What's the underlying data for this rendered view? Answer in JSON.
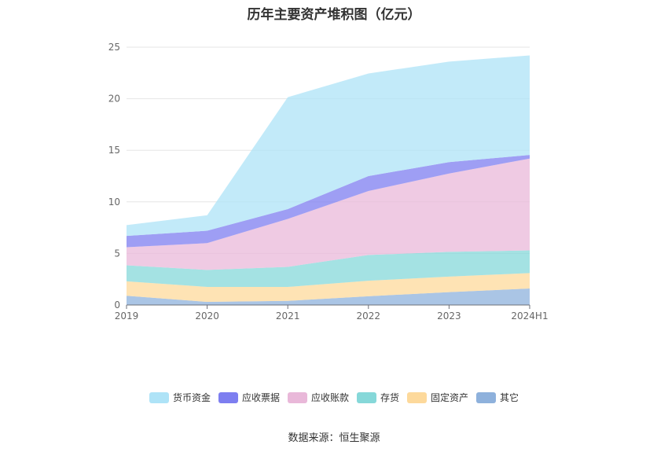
{
  "chart_data": {
    "type": "area",
    "stacked": true,
    "title": "历年主要资产堆积图（亿元）",
    "xlabel": "",
    "ylabel": "",
    "categories": [
      "2019",
      "2020",
      "2021",
      "2022",
      "2023",
      "2024H1"
    ],
    "ylim": [
      0,
      25
    ],
    "yticks": [
      0,
      5,
      10,
      15,
      20,
      25
    ],
    "grid": true,
    "legend_position": "bottom",
    "series": [
      {
        "name": "其它",
        "color": "#8eb1dc",
        "values": [
          0.9,
          0.3,
          0.4,
          0.85,
          1.25,
          1.6
        ]
      },
      {
        "name": "固定资产",
        "color": "#fdd99b",
        "values": [
          1.4,
          1.45,
          1.35,
          1.5,
          1.5,
          1.5
        ]
      },
      {
        "name": "存货",
        "color": "#86d8d9",
        "values": [
          1.55,
          1.65,
          1.95,
          2.5,
          2.4,
          2.2
        ]
      },
      {
        "name": "应收账款",
        "color": "#e9b8d9",
        "values": [
          1.75,
          2.6,
          4.65,
          6.2,
          7.6,
          8.9
        ]
      },
      {
        "name": "应收票据",
        "color": "#7d7ef0",
        "values": [
          1.1,
          1.2,
          0.95,
          1.45,
          1.1,
          0.35
        ]
      },
      {
        "name": "货币资金",
        "color": "#aee3f7",
        "values": [
          1.05,
          1.5,
          10.85,
          9.95,
          9.75,
          9.65
        ]
      }
    ],
    "legend_order": [
      "货币资金",
      "应收票据",
      "应收账款",
      "存货",
      "固定资产",
      "其它"
    ]
  },
  "source": "数据来源：恒生聚源"
}
